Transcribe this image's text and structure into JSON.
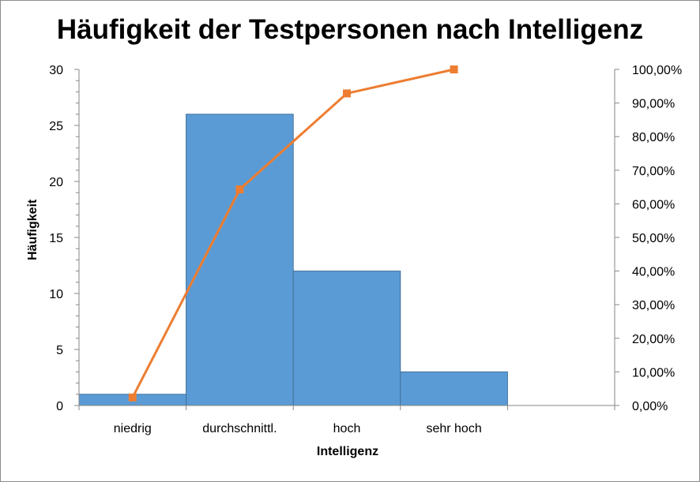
{
  "chart_data": {
    "type": "bar",
    "title": "Häufigkeit der Testpersonen nach Intelligenz",
    "xlabel": "Intelligenz",
    "ylabel": "Häufigkeit",
    "categories": [
      "niedrig",
      "durchschnittl.",
      "hoch",
      "sehr hoch"
    ],
    "ylim": [
      0,
      30
    ],
    "y_ticks": [
      "0",
      "5",
      "10",
      "15",
      "20",
      "25",
      "30"
    ],
    "y2lim": [
      0,
      1
    ],
    "y2_ticks": [
      "0,00%",
      "10,00%",
      "20,00%",
      "30,00%",
      "40,00%",
      "50,00%",
      "60,00%",
      "70,00%",
      "80,00%",
      "90,00%",
      "100,00%"
    ],
    "series": [
      {
        "type": "bar",
        "values": [
          1,
          26,
          12,
          3
        ],
        "color": "#5b9bd5"
      },
      {
        "type": "line",
        "axis": "secondary",
        "values": [
          0.0238,
          0.6429,
          0.9286,
          1.0
        ],
        "color": "#ed7d31",
        "marker": "square"
      }
    ],
    "grid": false,
    "legend": "none"
  }
}
